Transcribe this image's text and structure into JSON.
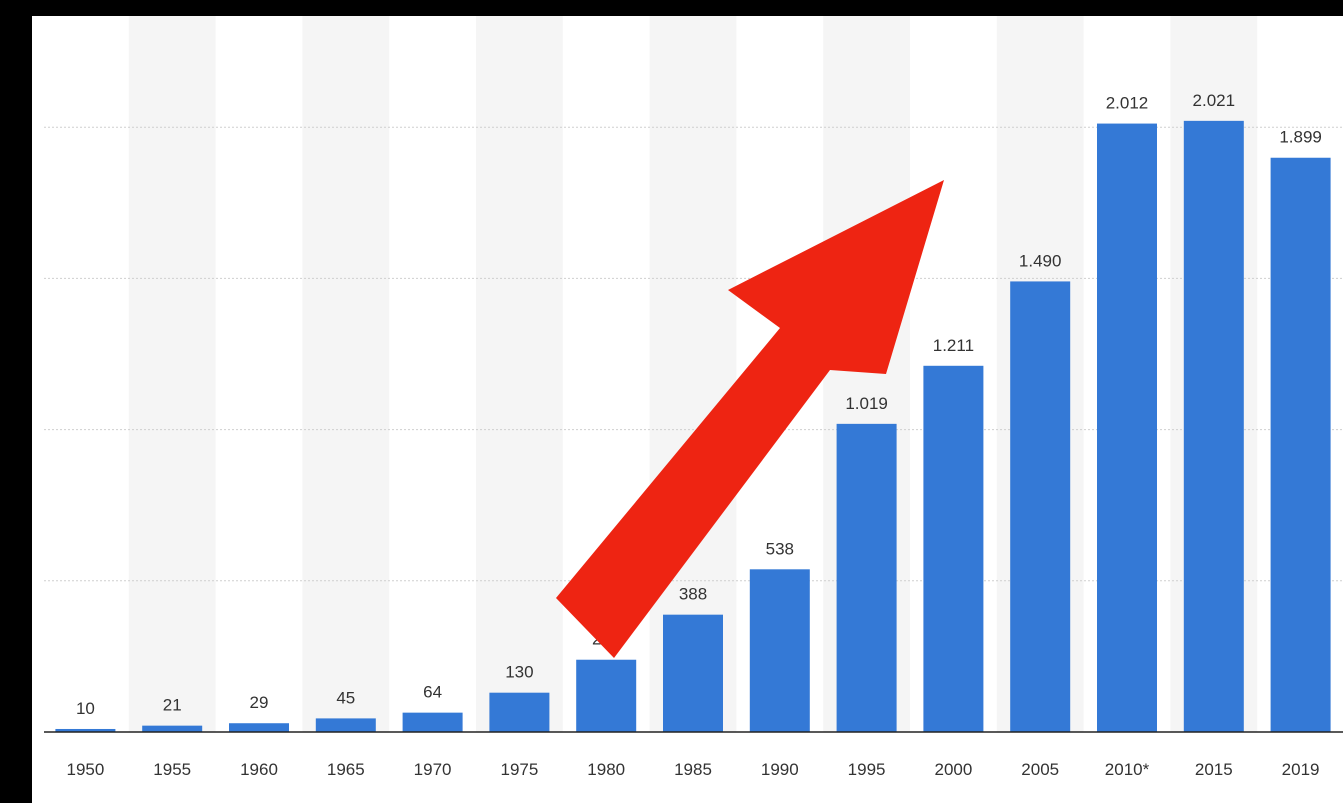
{
  "chart_data": {
    "type": "bar",
    "categories": [
      "1950",
      "1955",
      "1960",
      "1965",
      "1970",
      "1975",
      "1980",
      "1985",
      "1990",
      "1995",
      "2000",
      "2005",
      "2010*",
      "2015",
      "2019"
    ],
    "values": [
      10,
      21,
      29,
      45,
      64,
      130,
      239,
      388,
      538,
      1019,
      1211,
      1490,
      2012,
      2021,
      1899
    ],
    "value_labels": [
      "10",
      "21",
      "29",
      "45",
      "64",
      "130",
      "239",
      "388",
      "538",
      "1.019",
      "1.211",
      "1.490",
      "2.012",
      "2.021",
      "1.899"
    ],
    "title": "",
    "xlabel": "",
    "ylabel": "",
    "ylim": [
      0,
      2500
    ],
    "grid": true,
    "legend": "none",
    "colors": {
      "bar": "#3479d6",
      "page_background": "#000000",
      "plot_background": "#ffffff",
      "band_background": "#f5f5f5",
      "label_text": "#333333",
      "baseline": "#222222",
      "arrow": "#ee2412"
    }
  },
  "annotation": {
    "icon": "red-arrow-icon",
    "meaning": "upward trend arrow overlay"
  }
}
